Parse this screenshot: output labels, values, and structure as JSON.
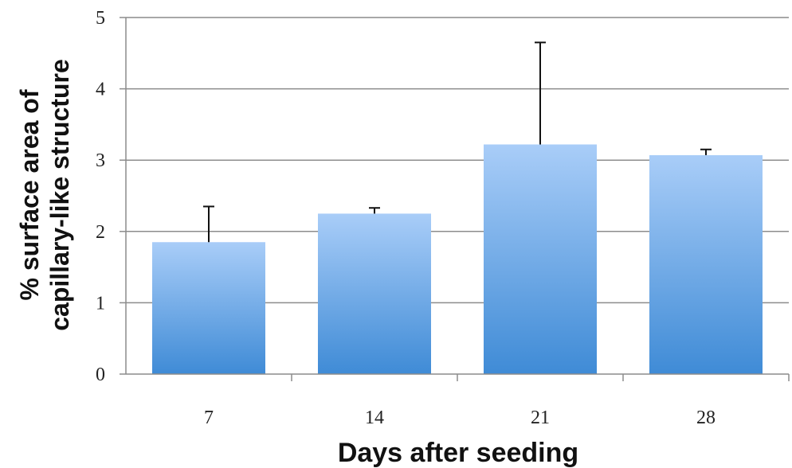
{
  "chart_data": {
    "type": "bar",
    "title": "",
    "xlabel": "Days after seeding",
    "ylabel": [
      "% surface area of",
      "capillary-like structure"
    ],
    "categories": [
      "7",
      "14",
      "21",
      "28"
    ],
    "values": [
      1.85,
      2.25,
      3.22,
      3.07
    ],
    "error_plus": [
      0.5,
      0.08,
      1.43,
      0.08
    ],
    "ylim": [
      0,
      5
    ],
    "yticks": [
      "0",
      "1",
      "2",
      "3",
      "4",
      "5"
    ],
    "grid": true,
    "bar_color_top": "#a9cdf8",
    "bar_color_bottom": "#3f8bd6"
  }
}
